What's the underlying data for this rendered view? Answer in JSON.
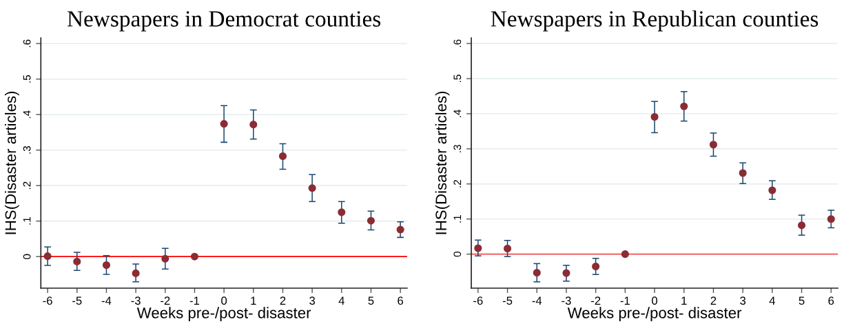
{
  "chart_data": [
    {
      "type": "scatter",
      "title": "Newspapers in Democrat counties",
      "xlabel": "Weeks pre-/post- disaster",
      "ylabel": "IHS(Disaster articles)",
      "x": [
        -6,
        -5,
        -4,
        -3,
        -2,
        -1,
        0,
        1,
        2,
        3,
        4,
        5,
        6
      ],
      "series": [
        {
          "color": "#8b2c35",
          "values": [
            0.001,
            -0.014,
            -0.024,
            -0.047,
            -0.006,
            0,
            0.374,
            0.372,
            0.283,
            0.193,
            0.125,
            0.101,
            0.076
          ],
          "errors": [
            [
              -0.025,
              0.027
            ],
            [
              -0.039,
              0.012
            ],
            [
              -0.05,
              0.003
            ],
            [
              -0.071,
              -0.021
            ],
            [
              -0.035,
              0.023
            ],
            null,
            [
              0.322,
              0.425
            ],
            [
              0.331,
              0.413
            ],
            [
              0.246,
              0.318
            ],
            [
              0.155,
              0.231
            ],
            [
              0.094,
              0.155
            ],
            [
              0.075,
              0.128
            ],
            [
              0.054,
              0.098
            ]
          ]
        }
      ],
      "xlim": [
        -6.23,
        6.23
      ],
      "xticks": [
        -6,
        -5,
        -4,
        -3,
        -2,
        -1,
        0,
        1,
        2,
        3,
        4,
        5,
        6
      ],
      "ylim": [
        -0.089,
        0.616
      ],
      "yticks": [
        0,
        {
          "value": 0.1,
          "label": ".1"
        },
        {
          "value": 0.2,
          "label": ".2"
        },
        {
          "value": 0.3,
          "label": ".3"
        },
        {
          "value": 0.4,
          "label": ".4"
        },
        {
          "value": 0.5,
          "label": ".5"
        },
        {
          "value": 0.6,
          "label": ".6"
        }
      ],
      "ref_lines": [
        {
          "axis": "y",
          "value": 0,
          "color": "#ff0000"
        }
      ],
      "grid": "y",
      "marker": "circle"
    },
    {
      "type": "scatter",
      "title": "Newspapers in Republican counties",
      "xlabel": "Weeks pre-/post- disaster",
      "ylabel": "IHS(Disaster articles)",
      "x": [
        -6,
        -5,
        -4,
        -3,
        -2,
        -1,
        0,
        1,
        2,
        3,
        4,
        5,
        6
      ],
      "series": [
        {
          "color": "#8b2c35",
          "values": [
            0.017,
            0.016,
            -0.053,
            -0.054,
            -0.035,
            0,
            0.391,
            0.421,
            0.312,
            0.231,
            0.182,
            0.082,
            0.1
          ],
          "errors": [
            [
              -0.005,
              0.04
            ],
            [
              -0.007,
              0.039
            ],
            [
              -0.079,
              -0.027
            ],
            [
              -0.077,
              -0.032
            ],
            [
              -0.058,
              -0.012
            ],
            null,
            [
              0.346,
              0.435
            ],
            [
              0.379,
              0.463
            ],
            [
              0.279,
              0.345
            ],
            [
              0.201,
              0.26
            ],
            [
              0.156,
              0.209
            ],
            [
              0.054,
              0.111
            ],
            [
              0.075,
              0.125
            ]
          ]
        }
      ],
      "xlim": [
        -6.23,
        6.23
      ],
      "xticks": [
        -6,
        -5,
        -4,
        -3,
        -2,
        -1,
        0,
        1,
        2,
        3,
        4,
        5,
        6
      ],
      "ylim": [
        -0.097,
        0.616
      ],
      "yticks": [
        0,
        {
          "value": 0.1,
          "label": ".1"
        },
        {
          "value": 0.2,
          "label": ".2"
        },
        {
          "value": 0.3,
          "label": ".3"
        },
        {
          "value": 0.4,
          "label": ".4"
        },
        {
          "value": 0.5,
          "label": ".5"
        },
        {
          "value": 0.6,
          "label": ".6"
        }
      ],
      "ref_lines": [
        {
          "axis": "y",
          "value": 0,
          "color": "#f55050"
        }
      ],
      "grid": "y",
      "marker": "circle"
    }
  ]
}
